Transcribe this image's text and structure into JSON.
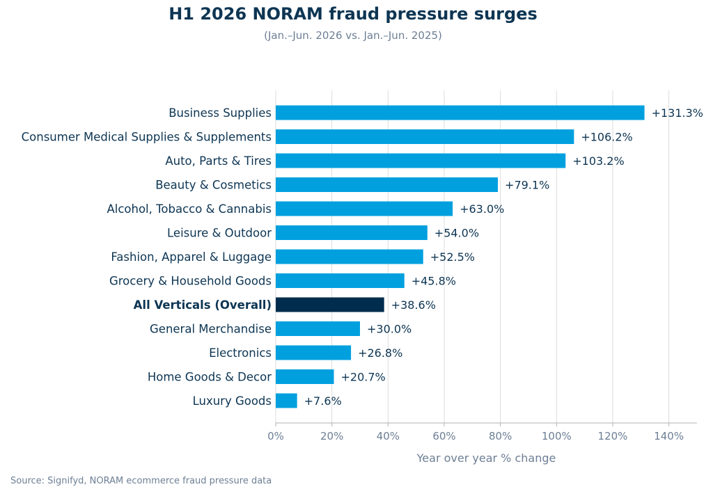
{
  "title": "H1 2026 NORAM fraud pressure surges",
  "subtitle": "(Jan.–Jun. 2026 vs. Jan.–Jun. 2025)",
  "source": "Source: Signifyd, NORAM ecommerce fraud pressure data",
  "colors": {
    "bar": "#00a0df",
    "highlight_bar": "#002d4d",
    "text": "#0d3553",
    "axis_text": "#6d7f95",
    "grid": "#dcdcdc"
  },
  "chart_data": {
    "type": "bar",
    "orientation": "horizontal",
    "categories": [
      "Business Supplies",
      "Consumer Medical Supplies & Supplements",
      "Auto, Parts & Tires",
      "Beauty & Cosmetics",
      "Alcohol, Tobacco & Cannabis",
      "Leisure & Outdoor",
      "Fashion, Apparel & Luggage",
      "Grocery & Household Goods",
      "All Verticals (Overall)",
      "General Merchandise",
      "Electronics",
      "Home Goods & Decor",
      "Luxury Goods"
    ],
    "values": [
      131.3,
      106.2,
      103.2,
      79.1,
      63.0,
      54.0,
      52.5,
      45.8,
      38.6,
      30.0,
      26.8,
      20.7,
      7.6
    ],
    "value_labels": [
      "+131.3%",
      "+106.2%",
      "+103.2%",
      "+79.1%",
      "+63.0%",
      "+54.0%",
      "+52.5%",
      "+45.8%",
      "+38.6%",
      "+30.0%",
      "+26.8%",
      "+20.7%",
      "+7.6%"
    ],
    "highlight_category": "All Verticals (Overall)",
    "xlabel": "Year over year % change",
    "xlim": [
      0,
      150
    ],
    "xticks": [
      0,
      20,
      40,
      60,
      80,
      100,
      120,
      140
    ],
    "xtick_labels": [
      "0%",
      "20%",
      "40%",
      "60%",
      "80%",
      "100%",
      "120%",
      "140%"
    ],
    "grid": "vertical"
  }
}
